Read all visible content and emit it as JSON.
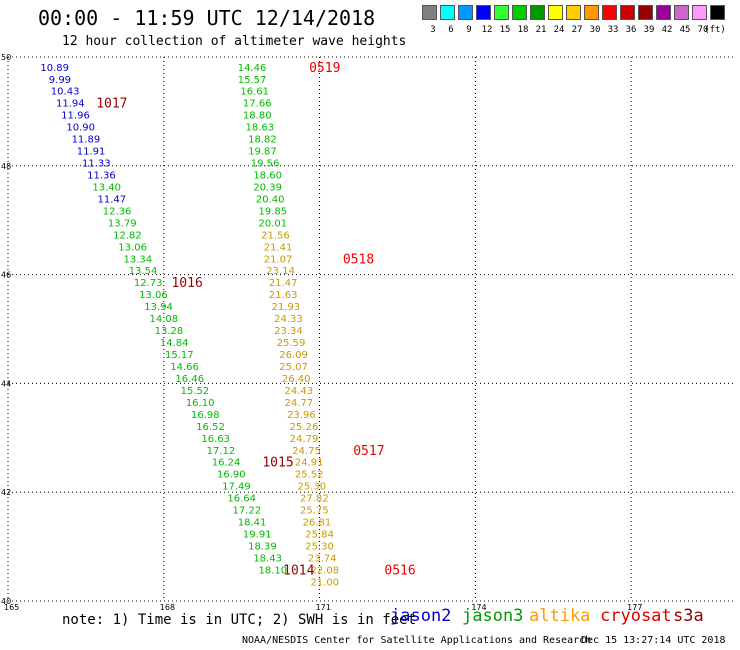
{
  "header": {
    "title": "00:00 - 11:59 UTC 12/14/2018",
    "subtitle": "12 hour collection of altimeter wave heights"
  },
  "legend": {
    "unit": "(ft)",
    "swatches": [
      {
        "label": "3",
        "color": "#808080"
      },
      {
        "label": "6",
        "color": "#00ffff"
      },
      {
        "label": "9",
        "color": "#0099ff"
      },
      {
        "label": "12",
        "color": "#0000ff"
      },
      {
        "label": "15",
        "color": "#33ff33"
      },
      {
        "label": "18",
        "color": "#00cc00"
      },
      {
        "label": "21",
        "color": "#009900"
      },
      {
        "label": "24",
        "color": "#ffff00"
      },
      {
        "label": "27",
        "color": "#ffcc00"
      },
      {
        "label": "30",
        "color": "#ff9900"
      },
      {
        "label": "33",
        "color": "#ff0000"
      },
      {
        "label": "36",
        "color": "#cc0000"
      },
      {
        "label": "39",
        "color": "#990000"
      },
      {
        "label": "42",
        "color": "#990099"
      },
      {
        "label": "45",
        "color": "#cc66cc"
      },
      {
        "label": "70",
        "color": "#ff99ff"
      },
      {
        "label": "",
        "color": "#000000"
      }
    ]
  },
  "chart_data": {
    "type": "scatter",
    "xlim": [
      165,
      179
    ],
    "ylim": [
      40,
      50
    ],
    "x_ticks": [
      "165",
      "168",
      "171",
      "174",
      "177"
    ],
    "y_ticks": [
      "50",
      "48",
      "46",
      "44",
      "42",
      "40"
    ],
    "grid": true,
    "series": [
      {
        "name": "jason2",
        "color": "#0000cc",
        "points": [
          {
            "x": 165.9,
            "y": 49.82,
            "v": "10.89"
          },
          {
            "x": 166.0,
            "y": 49.6,
            "v": "9.99"
          },
          {
            "x": 166.1,
            "y": 49.38,
            "v": "10.43"
          },
          {
            "x": 166.2,
            "y": 49.16,
            "v": "11.94"
          },
          {
            "x": 166.3,
            "y": 48.94,
            "v": "11.96"
          },
          {
            "x": 166.4,
            "y": 48.72,
            "v": "10.90"
          },
          {
            "x": 166.5,
            "y": 48.5,
            "v": "11.89"
          },
          {
            "x": 166.6,
            "y": 48.28,
            "v": "11.91"
          },
          {
            "x": 166.7,
            "y": 48.06,
            "v": "11.33"
          },
          {
            "x": 166.8,
            "y": 47.84,
            "v": "11.36"
          },
          {
            "x": 167.0,
            "y": 47.4,
            "v": "11.47"
          }
        ]
      },
      {
        "name": "jason3",
        "color": "#00bb00",
        "points": [
          {
            "x": 166.9,
            "y": 47.62,
            "v": "13.40"
          },
          {
            "x": 167.1,
            "y": 47.18,
            "v": "12.36"
          },
          {
            "x": 167.2,
            "y": 46.96,
            "v": "13.79"
          },
          {
            "x": 167.3,
            "y": 46.74,
            "v": "12.82"
          },
          {
            "x": 167.4,
            "y": 46.52,
            "v": "13.06"
          },
          {
            "x": 167.5,
            "y": 46.3,
            "v": "13.34"
          },
          {
            "x": 167.6,
            "y": 46.08,
            "v": "13.54"
          },
          {
            "x": 167.7,
            "y": 45.86,
            "v": "12.73"
          },
          {
            "x": 167.8,
            "y": 45.64,
            "v": "13.06"
          },
          {
            "x": 167.9,
            "y": 45.42,
            "v": "13.94"
          },
          {
            "x": 168.0,
            "y": 45.2,
            "v": "14.08"
          },
          {
            "x": 168.1,
            "y": 44.98,
            "v": "13.28"
          },
          {
            "x": 168.2,
            "y": 44.76,
            "v": "14.84"
          },
          {
            "x": 168.3,
            "y": 44.54,
            "v": "15.17"
          },
          {
            "x": 168.4,
            "y": 44.32,
            "v": "14.66"
          },
          {
            "x": 168.5,
            "y": 44.1,
            "v": "16.46"
          },
          {
            "x": 168.6,
            "y": 43.88,
            "v": "15.52"
          },
          {
            "x": 168.7,
            "y": 43.66,
            "v": "16.10"
          },
          {
            "x": 168.8,
            "y": 43.44,
            "v": "16.98"
          },
          {
            "x": 168.9,
            "y": 43.22,
            "v": "16.52"
          },
          {
            "x": 169.0,
            "y": 43.0,
            "v": "16.63"
          },
          {
            "x": 169.1,
            "y": 42.78,
            "v": "17.12"
          },
          {
            "x": 169.2,
            "y": 42.56,
            "v": "16.24"
          },
          {
            "x": 169.3,
            "y": 42.34,
            "v": "16.90"
          },
          {
            "x": 169.4,
            "y": 42.12,
            "v": "17.49"
          },
          {
            "x": 169.5,
            "y": 41.9,
            "v": "16.64"
          },
          {
            "x": 169.6,
            "y": 41.68,
            "v": "17.22"
          },
          {
            "x": 169.7,
            "y": 41.46,
            "v": "18.41"
          },
          {
            "x": 169.8,
            "y": 41.24,
            "v": "19.91"
          },
          {
            "x": 169.9,
            "y": 41.02,
            "v": "18.39"
          },
          {
            "x": 170.0,
            "y": 40.8,
            "v": "18.43"
          },
          {
            "x": 170.1,
            "y": 40.58,
            "v": "18.10"
          },
          {
            "x": 169.7,
            "y": 49.82,
            "v": "14.46"
          },
          {
            "x": 169.7,
            "y": 49.6,
            "v": "15.57"
          },
          {
            "x": 169.75,
            "y": 49.38,
            "v": "16.61"
          },
          {
            "x": 169.8,
            "y": 49.16,
            "v": "17.66"
          },
          {
            "x": 169.8,
            "y": 48.94,
            "v": "18.80"
          },
          {
            "x": 169.85,
            "y": 48.72,
            "v": "18.63"
          },
          {
            "x": 169.9,
            "y": 48.5,
            "v": "18.82"
          },
          {
            "x": 169.9,
            "y": 48.28,
            "v": "19.87"
          },
          {
            "x": 169.95,
            "y": 48.06,
            "v": "19.56"
          },
          {
            "x": 170.0,
            "y": 47.84,
            "v": "18.60"
          },
          {
            "x": 170.0,
            "y": 47.62,
            "v": "20.39"
          },
          {
            "x": 170.05,
            "y": 47.4,
            "v": "20.40"
          },
          {
            "x": 170.1,
            "y": 47.18,
            "v": "19.85"
          },
          {
            "x": 170.1,
            "y": 46.96,
            "v": "20.01"
          }
        ]
      },
      {
        "name": "altika",
        "color": "#cc9900",
        "points": [
          {
            "x": 170.15,
            "y": 46.74,
            "v": "21.56"
          },
          {
            "x": 170.2,
            "y": 46.52,
            "v": "21.41"
          },
          {
            "x": 170.2,
            "y": 46.3,
            "v": "21.07"
          },
          {
            "x": 170.25,
            "y": 46.08,
            "v": "23.14"
          },
          {
            "x": 170.3,
            "y": 45.86,
            "v": "21.47"
          },
          {
            "x": 170.3,
            "y": 45.64,
            "v": "21.63"
          },
          {
            "x": 170.35,
            "y": 45.42,
            "v": "21.93"
          },
          {
            "x": 170.4,
            "y": 45.2,
            "v": "24.33"
          },
          {
            "x": 170.4,
            "y": 44.98,
            "v": "23.34"
          },
          {
            "x": 170.45,
            "y": 44.76,
            "v": "25.59"
          },
          {
            "x": 170.5,
            "y": 44.54,
            "v": "26.09"
          },
          {
            "x": 170.5,
            "y": 44.32,
            "v": "25.07"
          },
          {
            "x": 170.55,
            "y": 44.1,
            "v": "26.40"
          },
          {
            "x": 170.6,
            "y": 43.88,
            "v": "24.43"
          },
          {
            "x": 170.6,
            "y": 43.66,
            "v": "24.77"
          },
          {
            "x": 170.65,
            "y": 43.44,
            "v": "23.96"
          },
          {
            "x": 170.7,
            "y": 43.22,
            "v": "25.26"
          },
          {
            "x": 170.7,
            "y": 43.0,
            "v": "24.79"
          },
          {
            "x": 170.75,
            "y": 42.78,
            "v": "24.75"
          },
          {
            "x": 170.8,
            "y": 42.56,
            "v": "24.91"
          },
          {
            "x": 170.8,
            "y": 42.34,
            "v": "25.52"
          },
          {
            "x": 170.85,
            "y": 42.12,
            "v": "25.30"
          },
          {
            "x": 170.9,
            "y": 41.9,
            "v": "27.82"
          },
          {
            "x": 170.9,
            "y": 41.68,
            "v": "25.75"
          },
          {
            "x": 170.95,
            "y": 41.46,
            "v": "26.81"
          },
          {
            "x": 171.0,
            "y": 41.24,
            "v": "25.84"
          },
          {
            "x": 171.0,
            "y": 41.02,
            "v": "25.30"
          },
          {
            "x": 171.05,
            "y": 40.8,
            "v": "23.74"
          },
          {
            "x": 171.1,
            "y": 40.58,
            "v": "22.08"
          },
          {
            "x": 171.1,
            "y": 40.36,
            "v": "21.00"
          }
        ]
      }
    ],
    "annotations": [
      {
        "text": "1017",
        "x": 167.0,
        "y": 49.16,
        "color": "#990000"
      },
      {
        "text": "1016",
        "x": 168.45,
        "y": 45.86,
        "color": "#990000"
      },
      {
        "text": "1015",
        "x": 170.2,
        "y": 42.56,
        "color": "#990000"
      },
      {
        "text": "1014",
        "x": 170.6,
        "y": 40.58,
        "color": "#990000"
      },
      {
        "text": "0519",
        "x": 171.1,
        "y": 49.82,
        "color": "#ee0000"
      },
      {
        "text": "0518",
        "x": 171.75,
        "y": 46.3,
        "color": "#ee0000"
      },
      {
        "text": "0517",
        "x": 171.95,
        "y": 42.78,
        "color": "#ee0000"
      },
      {
        "text": "0516",
        "x": 172.55,
        "y": 40.58,
        "color": "#ee0000"
      }
    ]
  },
  "footer": {
    "note": "note: 1) Time is in UTC; 2) SWH is in feet",
    "satellites": [
      {
        "name": "jason2",
        "color": "#0000cc"
      },
      {
        "name": "jason3",
        "color": "#009900"
      },
      {
        "name": "altika",
        "color": "#ff9900"
      },
      {
        "name": "cryosat",
        "color": "#dd0000"
      },
      {
        "name": "s3a",
        "color": "#990000"
      }
    ],
    "credit": "NOAA/NESDIS Center for Satellite Applications and Research",
    "generated": "Dec 15 13:27:14 UTC 2018"
  }
}
